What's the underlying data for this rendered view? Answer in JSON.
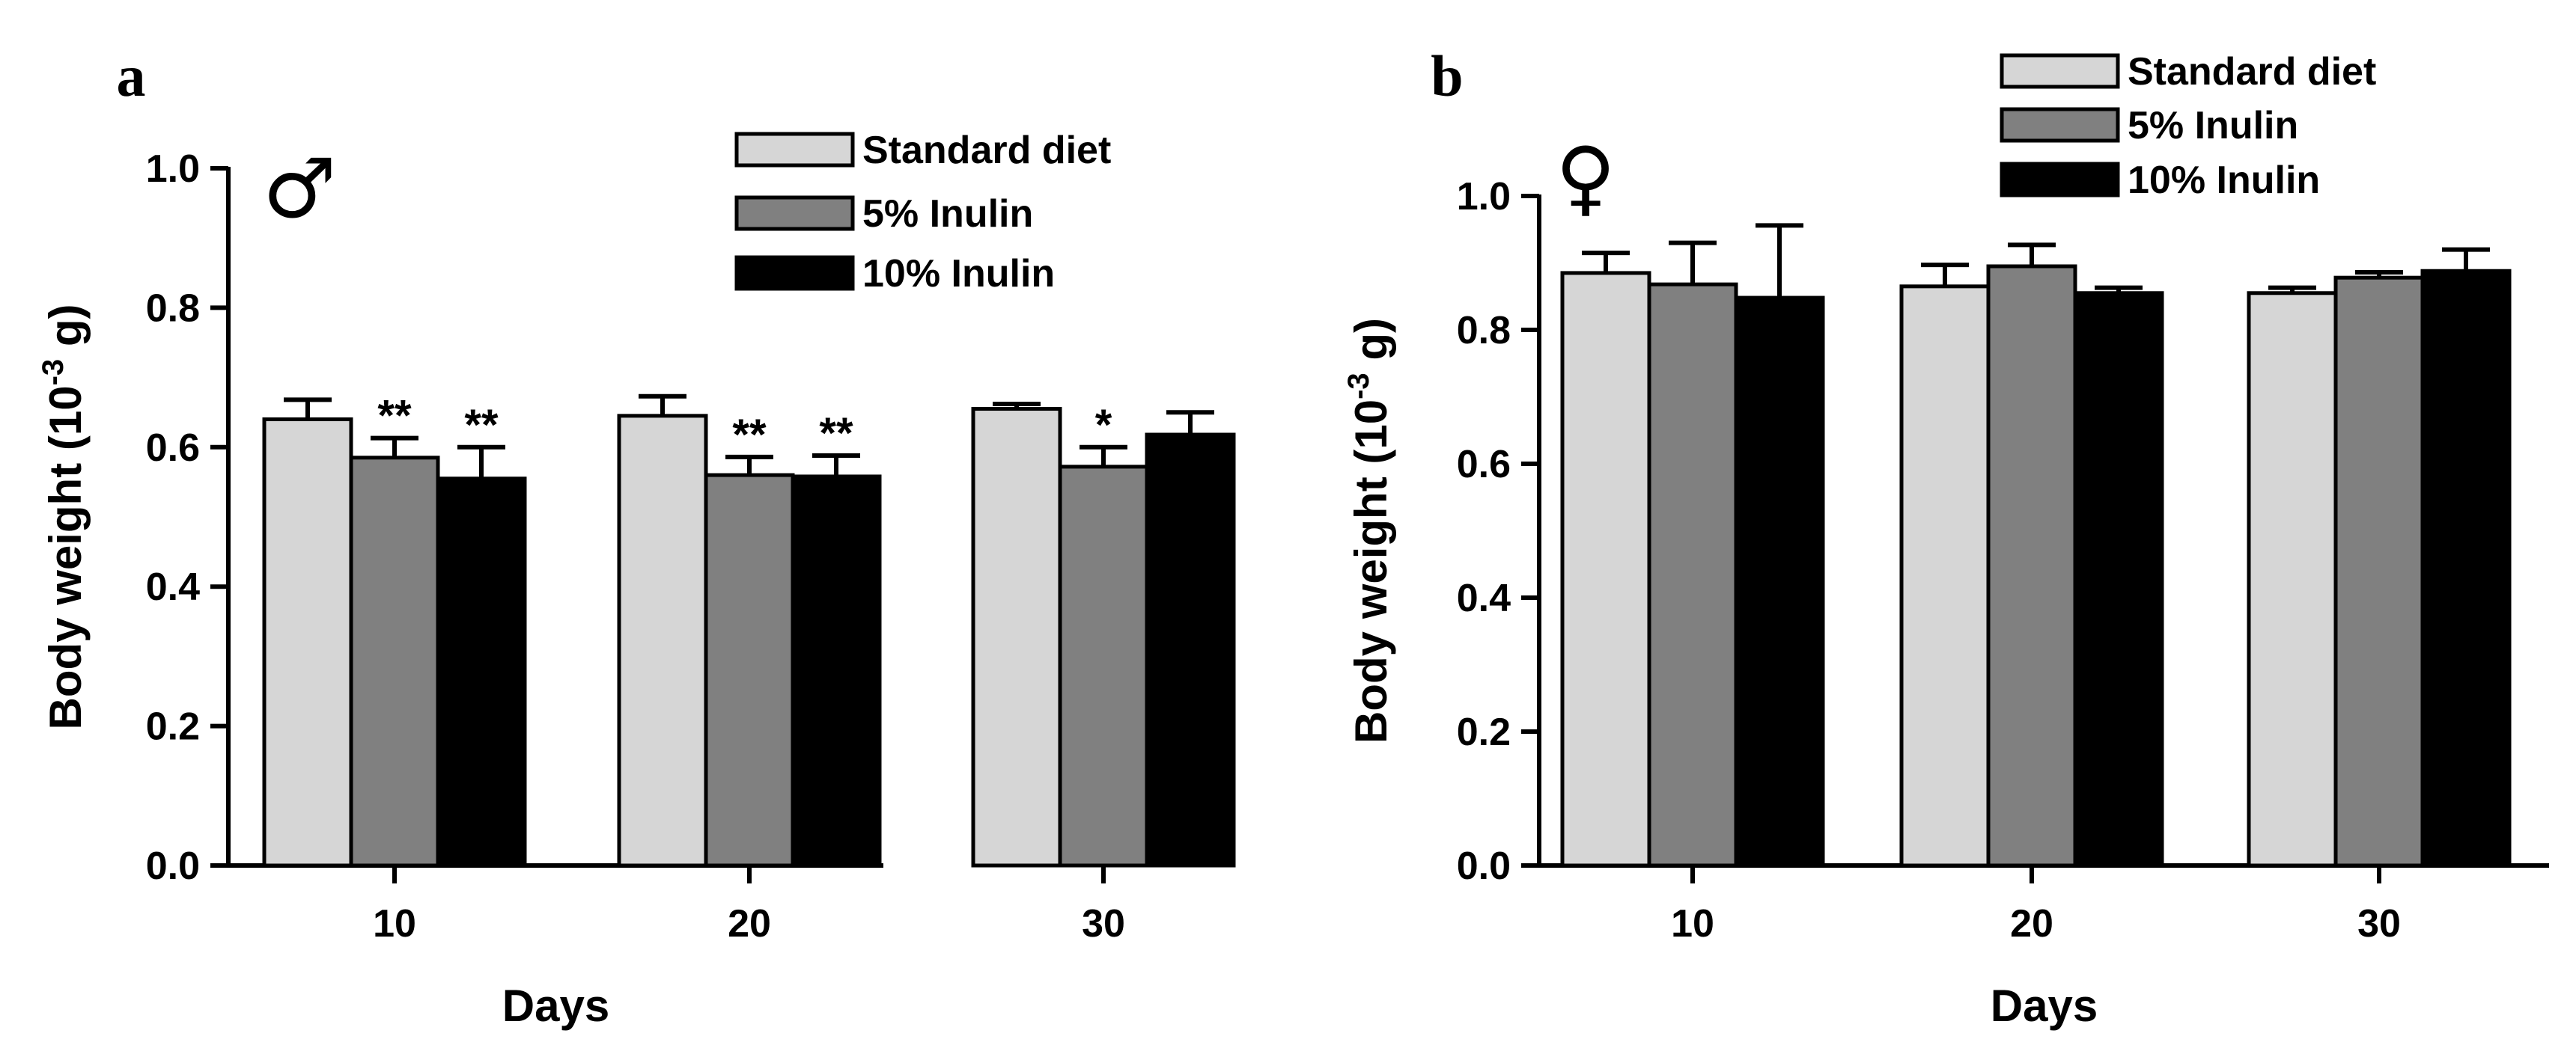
{
  "chart_data": [
    {
      "type": "bar",
      "panel_label": "a",
      "sex_symbol": "♂",
      "xlabel": "Days",
      "ylabel": "Body weight (10",
      "ylabel_exp": "-3",
      "ylabel_suffix": " g)",
      "ylim": [
        0,
        1.0
      ],
      "yticks": [
        "0.0",
        "0.2",
        "0.4",
        "0.6",
        "0.8",
        "1.0"
      ],
      "categories": [
        "10",
        "20",
        "30"
      ],
      "legend_position": "top-right",
      "series": [
        {
          "name": "Standard diet",
          "color": "#d6d6d6",
          "values": [
            0.64,
            0.645,
            0.655
          ],
          "errors": [
            0.028,
            0.028,
            0.007
          ],
          "significance": [
            "",
            "",
            ""
          ]
        },
        {
          "name": "5% Inulin",
          "color": "#808080",
          "values": [
            0.585,
            0.56,
            0.572
          ],
          "errors": [
            0.028,
            0.026,
            0.028
          ],
          "significance": [
            "**",
            "**",
            "*"
          ]
        },
        {
          "name": "10% Inulin",
          "color": "#000000",
          "values": [
            0.555,
            0.558,
            0.618
          ],
          "errors": [
            0.045,
            0.03,
            0.032
          ],
          "significance": [
            "**",
            "**",
            ""
          ]
        }
      ]
    },
    {
      "type": "bar",
      "panel_label": "b",
      "sex_symbol": "♀",
      "xlabel": "Days",
      "ylabel": "Body weight (10",
      "ylabel_exp": "-3",
      "ylabel_suffix": " g)",
      "ylim": [
        0,
        1.0
      ],
      "yticks": [
        "0.0",
        "0.2",
        "0.4",
        "0.6",
        "0.8",
        "1.0"
      ],
      "categories": [
        "10",
        "20",
        "30"
      ],
      "legend_position": "top-right",
      "series": [
        {
          "name": "Standard diet",
          "color": "#d6d6d6",
          "values": [
            0.885,
            0.865,
            0.855
          ],
          "errors": [
            0.03,
            0.032,
            0.008
          ],
          "significance": [
            "",
            "",
            ""
          ]
        },
        {
          "name": "5% Inulin",
          "color": "#808080",
          "values": [
            0.868,
            0.895,
            0.878
          ],
          "errors": [
            0.062,
            0.032,
            0.008
          ],
          "significance": [
            "",
            "",
            ""
          ]
        },
        {
          "name": "10% Inulin",
          "color": "#000000",
          "values": [
            0.848,
            0.855,
            0.888
          ],
          "errors": [
            0.108,
            0.008,
            0.032
          ],
          "significance": [
            "",
            "",
            ""
          ]
        }
      ]
    }
  ]
}
